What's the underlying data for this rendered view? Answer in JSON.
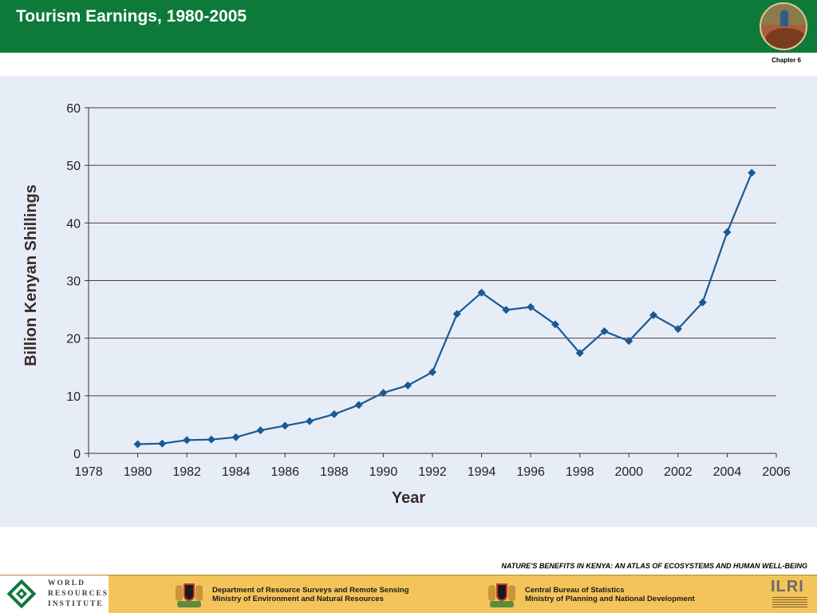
{
  "header": {
    "title": "Tourism Earnings, 1980-2005",
    "bg_color": "#0d7a3a"
  },
  "chapter_label": "Chapter 6",
  "atlas_caption": "NATURE'S BENEFITS IN KENYA: AN ATLAS OF ECOSYSTEMS AND HUMAN WELL-BEING",
  "footer": {
    "bg_color": "#f3c45a",
    "wri": {
      "line1": "WORLD",
      "line2": "RESOURCES",
      "line3": "INSTITUTE"
    },
    "dept_left": {
      "line1": "Department of Resource Surveys and Remote Sensing",
      "line2": "Ministry of Environment and Natural Resources"
    },
    "dept_right": {
      "line1": "Central Bureau of Statistics",
      "line2": "Ministry of Planning and National Development"
    },
    "ilri": "ILRI"
  },
  "chart_data": {
    "type": "line",
    "title": "",
    "xlabel": "Year",
    "ylabel": "Billion Kenyan Shillings",
    "xlim": [
      1978,
      2006
    ],
    "ylim": [
      0,
      60
    ],
    "xticks": [
      1978,
      1980,
      1982,
      1984,
      1986,
      1988,
      1990,
      1992,
      1994,
      1996,
      1998,
      2000,
      2002,
      2004,
      2006
    ],
    "yticks": [
      0,
      10,
      20,
      30,
      40,
      50,
      60
    ],
    "grid": "horizontal",
    "line_color": "#1a5a94",
    "series": [
      {
        "x": [
          1980,
          1981,
          1982,
          1983,
          1984,
          1985,
          1986,
          1987,
          1988,
          1989,
          1990,
          1991,
          1992,
          1993,
          1994,
          1995,
          1996,
          1997,
          1998,
          1999,
          2000,
          2001,
          2002,
          2003,
          2004,
          2005
        ],
        "y": [
          1.6,
          1.7,
          2.3,
          2.4,
          2.8,
          4.0,
          4.8,
          5.6,
          6.8,
          8.4,
          10.5,
          11.8,
          14.1,
          24.2,
          27.9,
          24.9,
          25.4,
          22.4,
          17.4,
          21.2,
          19.5,
          24.0,
          21.6,
          26.2,
          38.4,
          48.7
        ]
      }
    ]
  }
}
